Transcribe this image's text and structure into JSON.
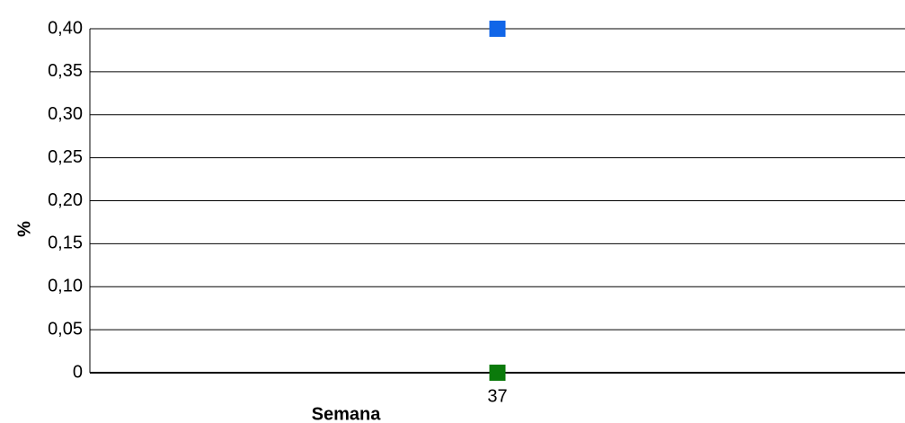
{
  "chart_data": {
    "type": "line",
    "x_label": "Semana",
    "y_label": "%",
    "categories": [
      "37"
    ],
    "series": [
      {
        "color": "#1166e8",
        "values": [
          0.4
        ]
      },
      {
        "color": "#0b7a0b",
        "values": [
          0
        ]
      }
    ],
    "ylim": [
      0,
      0.4
    ],
    "yticks": [
      0,
      {
        "value": 0.05,
        "label": "0,05"
      },
      {
        "value": 0.1,
        "label": "0,10"
      },
      {
        "value": 0.15,
        "label": "0,15"
      },
      {
        "value": 0.2,
        "label": "0,20"
      },
      {
        "value": 0.25,
        "label": "0,25"
      },
      {
        "value": 0.3,
        "label": "0,30"
      },
      {
        "value": 0.35,
        "label": "0,35"
      },
      {
        "value": 0.4,
        "label": "0,40"
      }
    ],
    "grid": true
  }
}
